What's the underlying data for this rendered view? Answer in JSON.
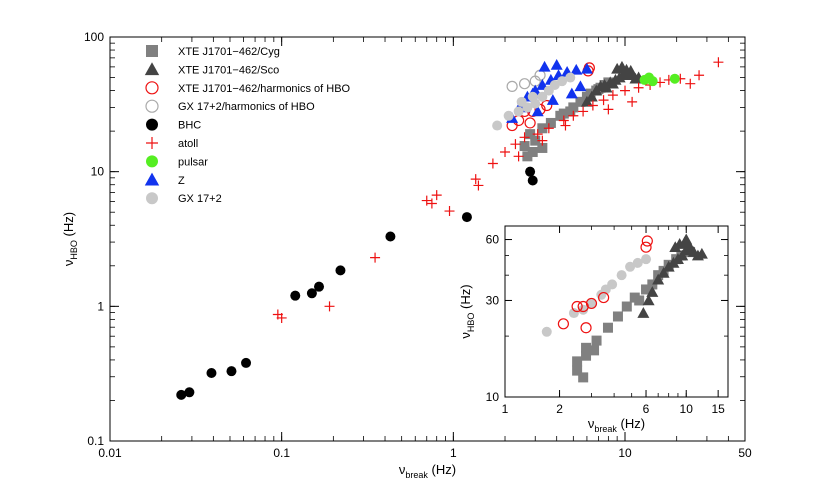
{
  "chart_data": {
    "type": "scatter",
    "x_scale": "log",
    "y_scale": "log",
    "xlim": [
      0.01,
      50
    ],
    "ylim": [
      0.1,
      100
    ],
    "x_ticks": [
      {
        "value": 0.01,
        "label": "0.01"
      },
      {
        "value": 0.1,
        "label": "0.1"
      },
      {
        "value": 1,
        "label": "1"
      },
      {
        "value": 10,
        "label": "10"
      },
      {
        "value": 50,
        "label": "50"
      }
    ],
    "y_ticks": [
      {
        "value": 0.1,
        "label": "0.1"
      },
      {
        "value": 1,
        "label": "1"
      },
      {
        "value": 10,
        "label": "10"
      },
      {
        "value": 100,
        "label": "100"
      }
    ],
    "xlabel": {
      "main": "ν",
      "sub": "break",
      "unit": " (Hz)"
    },
    "ylabel": {
      "main": "ν",
      "sub": "HBO",
      "unit": " (Hz)"
    },
    "grid": false,
    "legend_position": "top-left",
    "series": [
      {
        "name": "XTE J1701−462/Cyg",
        "marker": "square",
        "color": "#808080",
        "filled": true,
        "points": [
          [
            2.7,
            13
          ],
          [
            2.9,
            14
          ],
          [
            3.3,
            15
          ],
          [
            2.6,
            15.5
          ],
          [
            3.0,
            17
          ],
          [
            2.8,
            19
          ],
          [
            3.3,
            21
          ],
          [
            3.7,
            23
          ],
          [
            4.2,
            26
          ],
          [
            4.8,
            28
          ],
          [
            5.5,
            33
          ],
          [
            6.0,
            36
          ],
          [
            6.3,
            38
          ],
          [
            6.8,
            40
          ],
          [
            7.2,
            42
          ],
          [
            7.6,
            44
          ],
          [
            8.0,
            46
          ],
          [
            7.0,
            41
          ],
          [
            5.0,
            30
          ],
          [
            4.4,
            27
          ]
        ]
      },
      {
        "name": "XTE J1701−462/Sco",
        "marker": "triangle",
        "color": "#444444",
        "filled": true,
        "points": [
          [
            6.0,
            33
          ],
          [
            6.4,
            36
          ],
          [
            6.8,
            40
          ],
          [
            7.2,
            43
          ],
          [
            7.6,
            44
          ],
          [
            8.2,
            46
          ],
          [
            8.8,
            48
          ],
          [
            9.3,
            50
          ],
          [
            9.8,
            52
          ],
          [
            10.3,
            54
          ],
          [
            10.8,
            56
          ],
          [
            9.0,
            58
          ],
          [
            9.6,
            60
          ],
          [
            10.2,
            57
          ],
          [
            11.0,
            52
          ],
          [
            11.5,
            49
          ],
          [
            12.0,
            50
          ],
          [
            8.5,
            45
          ],
          [
            7.8,
            42
          ]
        ]
      },
      {
        "name": "XTE J1701−462/harmonics of HBO",
        "marker": "circle",
        "color": "#ee1111",
        "filled": false,
        "points": [
          [
            2.2,
            22
          ],
          [
            2.4,
            24
          ],
          [
            2.6,
            28
          ],
          [
            2.9,
            28
          ],
          [
            3.2,
            29
          ],
          [
            3.5,
            31
          ],
          [
            6.1,
            56
          ],
          [
            6.2,
            59
          ],
          [
            2.8,
            23
          ]
        ]
      },
      {
        "name": "GX 17+2/harmonics of HBO",
        "marker": "circle",
        "color": "#aaaaaa",
        "filled": false,
        "points": [
          [
            2.2,
            43
          ],
          [
            2.6,
            45
          ],
          [
            3.0,
            47
          ],
          [
            3.2,
            52
          ]
        ]
      },
      {
        "name": "BHC",
        "marker": "circle",
        "color": "#000000",
        "filled": true,
        "points": [
          [
            0.026,
            0.22
          ],
          [
            0.029,
            0.23
          ],
          [
            0.039,
            0.32
          ],
          [
            0.051,
            0.33
          ],
          [
            0.062,
            0.38
          ],
          [
            0.12,
            1.2
          ],
          [
            0.15,
            1.25
          ],
          [
            0.165,
            1.4
          ],
          [
            0.22,
            1.85
          ],
          [
            0.43,
            3.3
          ],
          [
            1.2,
            4.6
          ],
          [
            2.8,
            10
          ],
          [
            2.9,
            8.6
          ]
        ]
      },
      {
        "name": "atoll",
        "marker": "cross",
        "color": "#ee1111",
        "filled": false,
        "points": [
          [
            0.095,
            0.87
          ],
          [
            0.1,
            0.82
          ],
          [
            0.19,
            1.0
          ],
          [
            0.35,
            2.3
          ],
          [
            0.7,
            6.1
          ],
          [
            0.75,
            5.8
          ],
          [
            0.8,
            6.7
          ],
          [
            0.95,
            5.1
          ],
          [
            1.35,
            8.8
          ],
          [
            1.4,
            7.9
          ],
          [
            1.7,
            11.5
          ],
          [
            2.0,
            14
          ],
          [
            2.3,
            16
          ],
          [
            2.6,
            18
          ],
          [
            3.1,
            19
          ],
          [
            3.6,
            21
          ],
          [
            4.4,
            24
          ],
          [
            5.0,
            26
          ],
          [
            5.7,
            28
          ],
          [
            6.5,
            31
          ],
          [
            7.5,
            34
          ],
          [
            8.5,
            37
          ],
          [
            10.0,
            40
          ],
          [
            12.0,
            42
          ],
          [
            14.0,
            44
          ],
          [
            16.0,
            46
          ],
          [
            18.0,
            48
          ],
          [
            21.0,
            49
          ],
          [
            24.0,
            45
          ],
          [
            27.0,
            52
          ],
          [
            35.0,
            65
          ],
          [
            4.5,
            22
          ],
          [
            8.0,
            29
          ],
          [
            11.0,
            33
          ],
          [
            3.3,
            17
          ],
          [
            2.4,
            13
          ]
        ]
      },
      {
        "name": "pulsar",
        "marker": "circle",
        "color": "#55ee22",
        "filled": true,
        "points": [
          [
            13.0,
            48
          ],
          [
            13.8,
            50
          ],
          [
            14.5,
            47
          ],
          [
            19.5,
            49
          ]
        ]
      },
      {
        "name": "Z",
        "marker": "triangle",
        "color": "#1133ee",
        "filled": true,
        "points": [
          [
            2.2,
            25
          ],
          [
            2.5,
            32
          ],
          [
            2.7,
            36
          ],
          [
            3.0,
            40
          ],
          [
            3.3,
            44
          ],
          [
            3.7,
            48
          ],
          [
            4.1,
            52
          ],
          [
            4.6,
            55
          ],
          [
            5.2,
            57
          ],
          [
            6.0,
            58
          ],
          [
            3.4,
            60
          ],
          [
            4.0,
            62
          ],
          [
            2.9,
            38
          ],
          [
            3.1,
            28
          ],
          [
            4.9,
            38
          ],
          [
            5.5,
            43
          ],
          [
            2.6,
            30
          ],
          [
            3.8,
            34
          ]
        ]
      },
      {
        "name": "GX 17+2",
        "marker": "circle",
        "color": "#c8c8c8",
        "filled": true,
        "points": [
          [
            1.8,
            22
          ],
          [
            2.1,
            26
          ],
          [
            2.4,
            28
          ],
          [
            2.7,
            30
          ],
          [
            3.0,
            32
          ],
          [
            3.3,
            36
          ],
          [
            3.6,
            40
          ],
          [
            3.9,
            44
          ],
          [
            4.3,
            47
          ],
          [
            4.8,
            50
          ],
          [
            2.5,
            33
          ],
          [
            2.9,
            36
          ]
        ]
      }
    ],
    "inset": {
      "xlim": [
        1,
        17
      ],
      "ylim": [
        10,
        70
      ],
      "x_scale": "log",
      "y_scale": "log",
      "x_ticks": [
        {
          "value": 1,
          "label": "1"
        },
        {
          "value": 2,
          "label": "2"
        },
        {
          "value": 6,
          "label": "6"
        },
        {
          "value": 10,
          "label": "10"
        },
        {
          "value": 15,
          "label": "15"
        }
      ],
      "y_ticks": [
        {
          "value": 10,
          "label": "10"
        },
        {
          "value": 30,
          "label": "30"
        },
        {
          "value": 60,
          "label": "60"
        }
      ],
      "xlabel": {
        "main": "ν",
        "sub": "break",
        "unit": " (Hz)"
      },
      "ylabel": {
        "main": "ν",
        "sub": "HBO",
        "unit": " (Hz)"
      },
      "series": [
        {
          "name": "GX 17+2",
          "marker": "circle",
          "color": "#c8c8c8",
          "filled": true,
          "points": [
            [
              1.7,
              21
            ],
            [
              2.4,
              26
            ],
            [
              2.7,
              27
            ],
            [
              3.0,
              29
            ],
            [
              3.4,
              32
            ],
            [
              3.9,
              36
            ],
            [
              4.4,
              40
            ],
            [
              4.9,
              44
            ],
            [
              5.4,
              46
            ],
            [
              6.0,
              48
            ],
            [
              3.6,
              34
            ]
          ]
        },
        {
          "name": "XTE J1701−462/Cyg",
          "marker": "square",
          "color": "#808080",
          "filled": true,
          "points": [
            [
              2.5,
              13.5
            ],
            [
              2.7,
              12.5
            ],
            [
              2.5,
              15
            ],
            [
              2.8,
              16
            ],
            [
              3.1,
              17
            ],
            [
              2.8,
              17.5
            ],
            [
              3.2,
              19
            ],
            [
              3.7,
              22
            ],
            [
              4.2,
              25
            ],
            [
              4.7,
              28
            ],
            [
              5.2,
              31
            ],
            [
              5.5,
              30
            ],
            [
              6.0,
              34
            ],
            [
              6.5,
              36
            ],
            [
              7.0,
              40
            ],
            [
              7.5,
              42
            ],
            [
              8.0,
              45
            ],
            [
              8.8,
              48
            ],
            [
              9.4,
              50
            ],
            [
              10.5,
              52
            ]
          ]
        },
        {
          "name": "XTE J1701−462/Sco",
          "marker": "triangle",
          "color": "#444444",
          "filled": true,
          "points": [
            [
              5.8,
              26
            ],
            [
              6.2,
              30
            ],
            [
              6.5,
              33
            ],
            [
              7.0,
              38
            ],
            [
              7.5,
              41
            ],
            [
              8.0,
              44
            ],
            [
              8.5,
              46
            ],
            [
              9.0,
              48
            ],
            [
              9.5,
              50
            ],
            [
              10.0,
              53
            ],
            [
              10.5,
              55
            ],
            [
              9.2,
              57
            ],
            [
              9.8,
              58
            ],
            [
              10.3,
              56
            ],
            [
              11.0,
              52
            ],
            [
              11.6,
              50
            ],
            [
              12.2,
              51
            ],
            [
              8.7,
              55
            ],
            [
              10.0,
              60
            ]
          ]
        },
        {
          "name": "XTE J1701−462/harmonics of HBO",
          "marker": "circle",
          "color": "#ee1111",
          "filled": false,
          "points": [
            [
              2.1,
              23
            ],
            [
              2.5,
              28
            ],
            [
              2.7,
              28
            ],
            [
              3.0,
              29
            ],
            [
              3.5,
              31
            ],
            [
              2.8,
              22
            ],
            [
              6.0,
              55
            ],
            [
              6.1,
              59
            ]
          ]
        }
      ]
    }
  }
}
